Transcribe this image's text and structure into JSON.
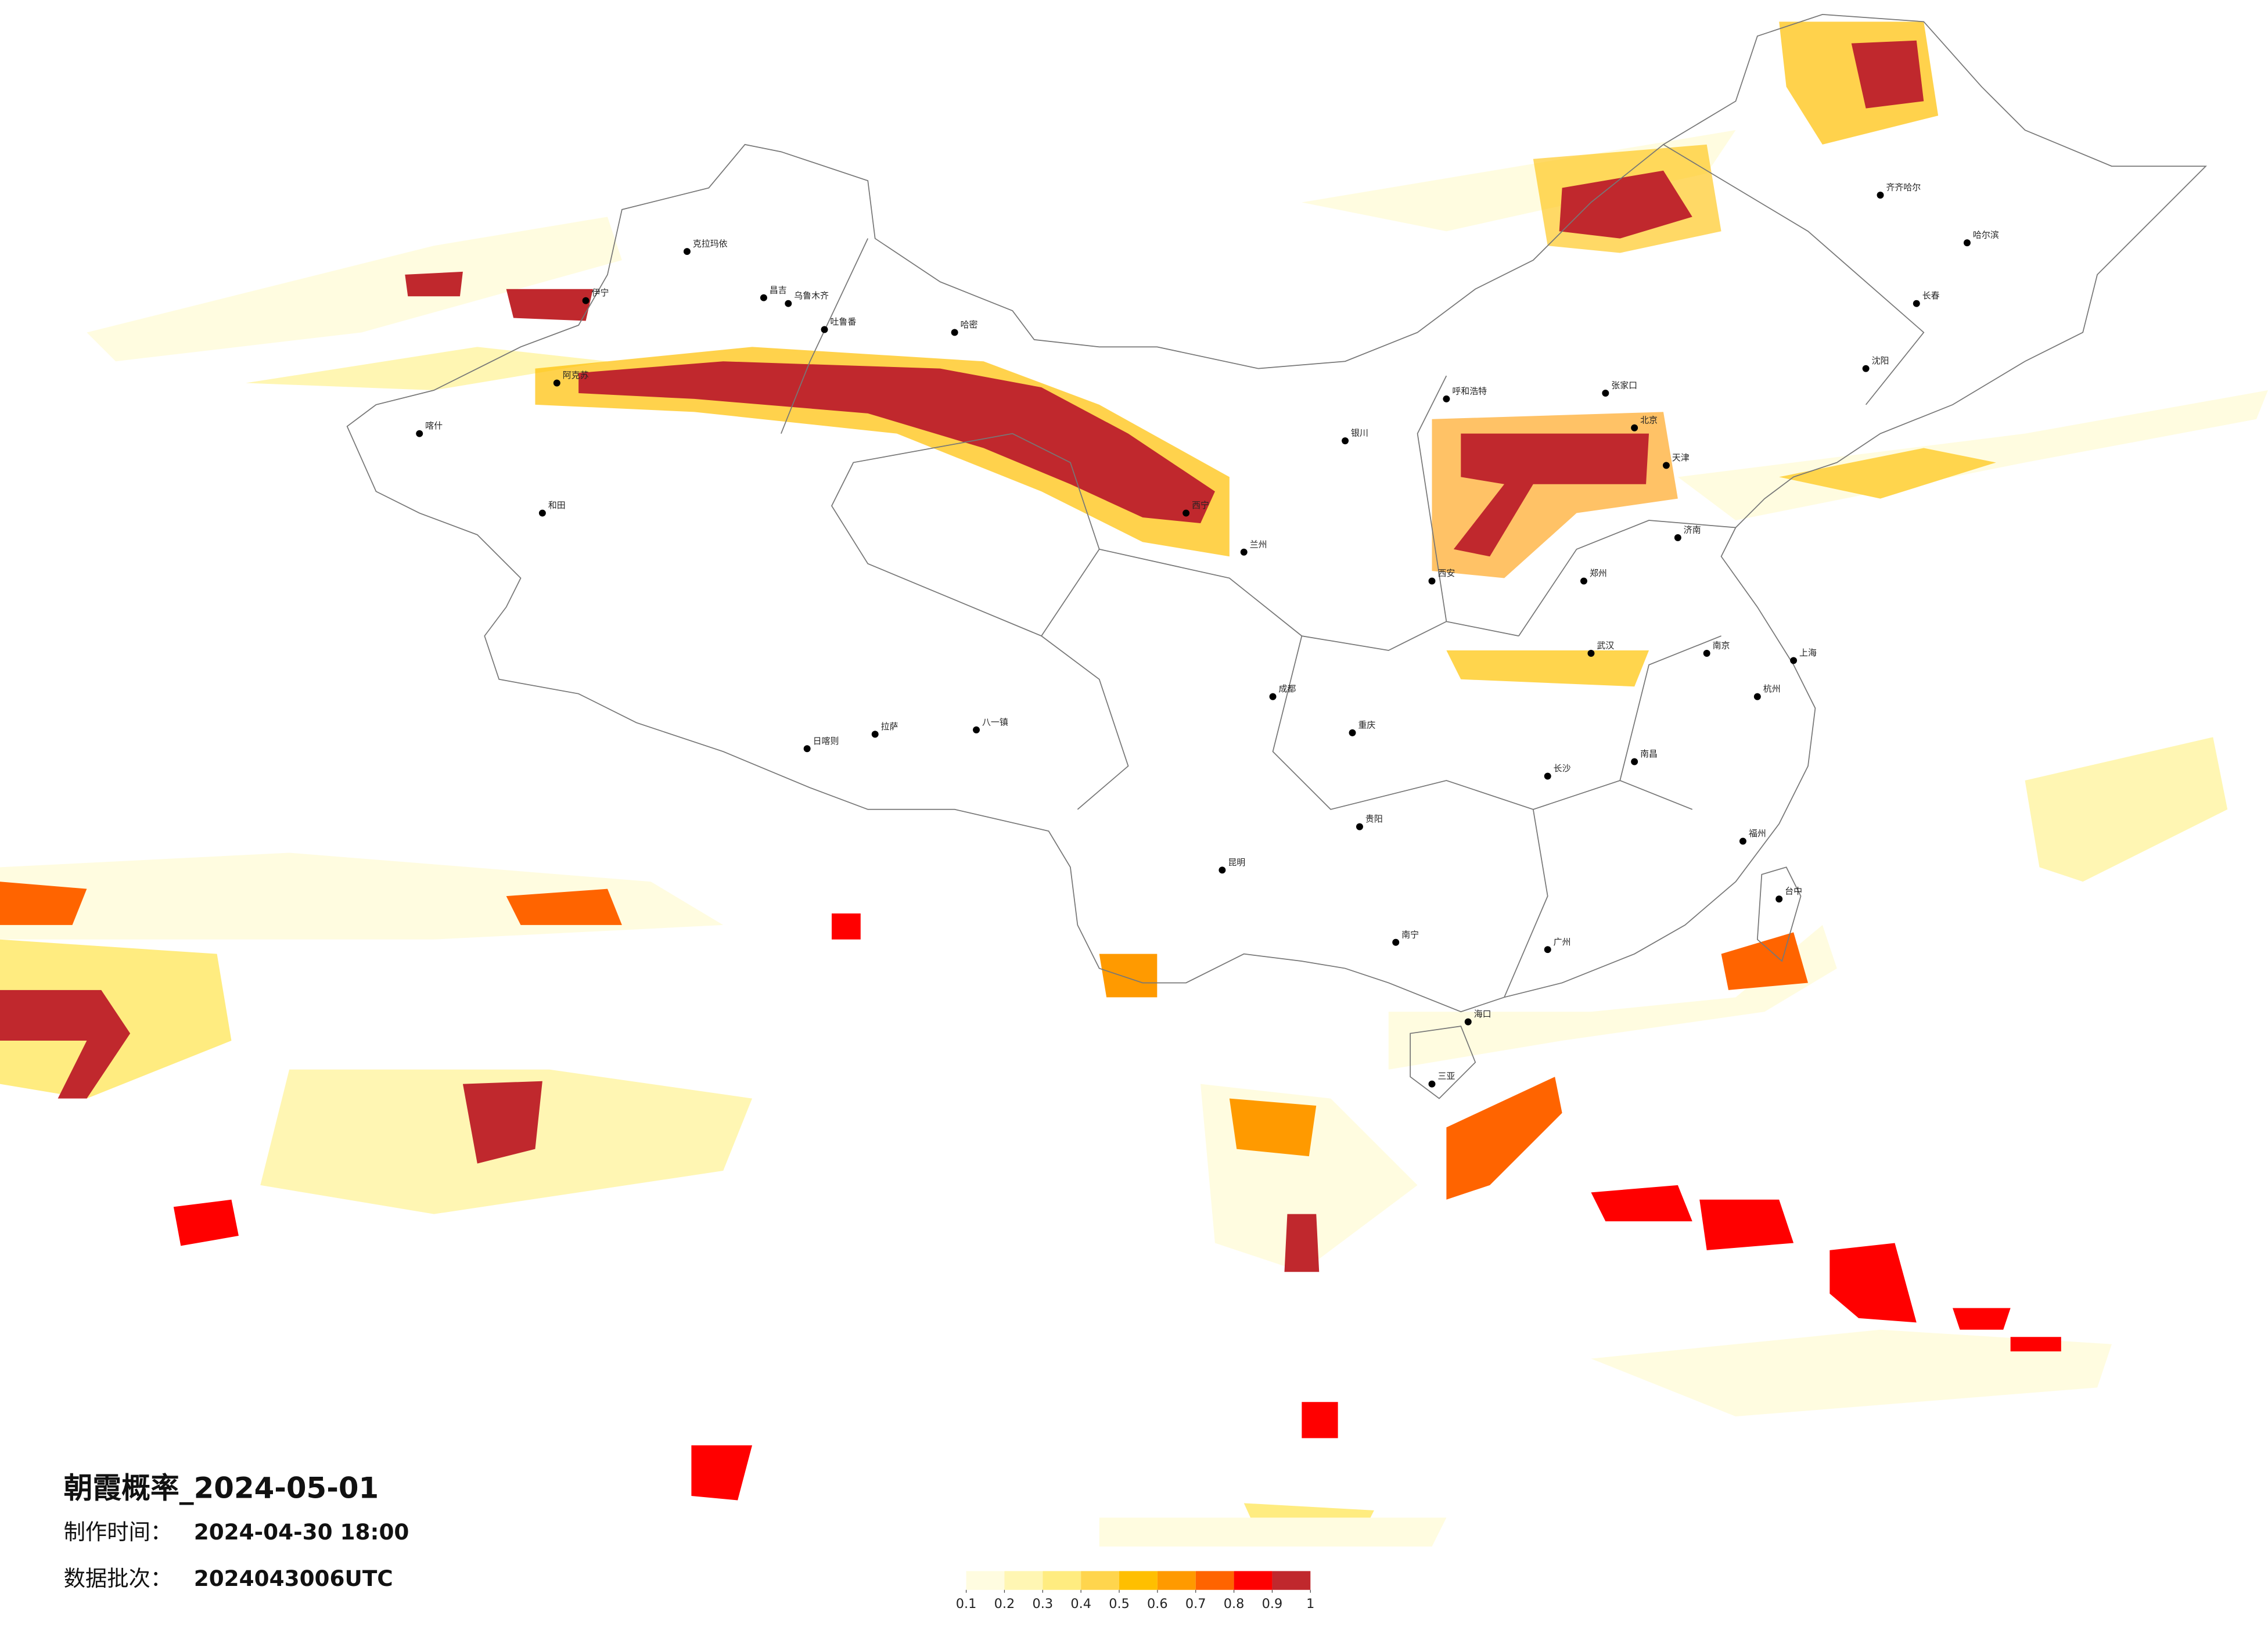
{
  "title": "朝霞概率_2024-05-01",
  "made_time": {
    "label": "制作时间：",
    "value": "2024-04-30 18:00"
  },
  "batch": {
    "label": "数据批次：",
    "value": "2024043006UTC"
  },
  "legend": {
    "ticks": [
      0.1,
      0.2,
      0.3,
      0.4,
      0.5,
      0.6,
      0.7,
      0.8,
      0.9,
      1
    ],
    "colors": [
      "#fffce0",
      "#fff6b3",
      "#ffec80",
      "#ffd54d",
      "#ffbf00",
      "#ff9a00",
      "#ff6400",
      "#ff0000",
      "#c0282d"
    ]
  },
  "cities": [
    "喀什",
    "和田",
    "阿克苏",
    "乌鲁木齐",
    "昌吉",
    "伊宁",
    "克拉玛依",
    "哈密",
    "吐鲁番",
    "日喀则",
    "拉萨",
    "八一镇",
    "西宁",
    "兰州",
    "银川",
    "呼和浩特",
    "哈尔滨",
    "长春",
    "沈阳",
    "齐齐哈尔",
    "北京",
    "天津",
    "济南",
    "郑州",
    "西安",
    "成都",
    "重庆",
    "贵阳",
    "昆明",
    "南宁",
    "广州",
    "武汉",
    "长沙",
    "南昌",
    "杭州",
    "上海",
    "南京",
    "福州",
    "台中",
    "海口",
    "三亚",
    "张家口"
  ]
}
